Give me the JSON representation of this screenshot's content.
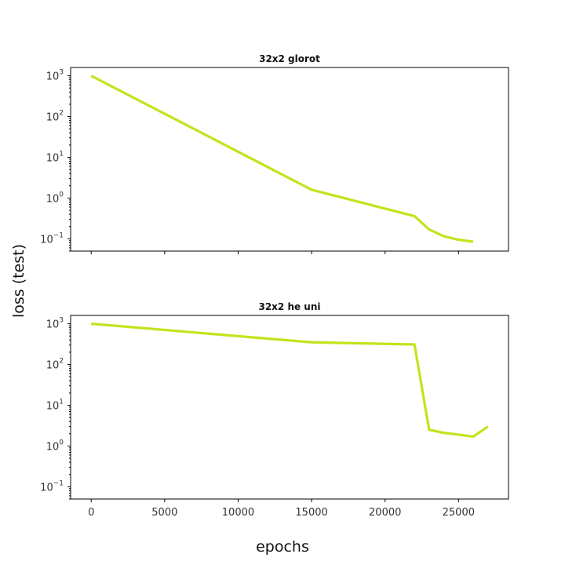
{
  "figure": {
    "xlabel": "epochs",
    "ylabel": "loss (test)",
    "line_color": "#c3e31c"
  },
  "chart_data": [
    {
      "type": "line",
      "title": "32x2 glorot",
      "xlabel": "",
      "ylabel": "",
      "yscale": "log",
      "xlim": [
        -1400,
        28400
      ],
      "ylim": [
        0.05,
        1600
      ],
      "x_ticks": [
        0,
        5000,
        10000,
        15000,
        20000,
        25000
      ],
      "x_tick_labels_shown": false,
      "y_ticks": [
        {
          "value": 0.1,
          "base": "10",
          "exp": "−1"
        },
        {
          "value": 1,
          "base": "10",
          "exp": "0"
        },
        {
          "value": 10,
          "base": "10",
          "exp": "1"
        },
        {
          "value": 100,
          "base": "10",
          "exp": "2"
        },
        {
          "value": 1000,
          "base": "10",
          "exp": "3"
        }
      ],
      "grid": false,
      "series": [
        {
          "x": [
            0,
            15000,
            22000,
            23000,
            24000,
            25000,
            26000
          ],
          "y": [
            1000,
            1.6,
            0.36,
            0.17,
            0.115,
            0.095,
            0.085
          ]
        }
      ]
    },
    {
      "type": "line",
      "title": "32x2 he uni",
      "xlabel": "",
      "ylabel": "",
      "yscale": "log",
      "xlim": [
        -1400,
        28400
      ],
      "ylim": [
        0.05,
        1600
      ],
      "x_ticks": [
        0,
        5000,
        10000,
        15000,
        20000,
        25000
      ],
      "x_tick_labels_shown": true,
      "x_tick_labels": [
        "0",
        "5000",
        "10000",
        "15000",
        "20000",
        "25000"
      ],
      "y_ticks": [
        {
          "value": 0.1,
          "base": "10",
          "exp": "−1"
        },
        {
          "value": 1,
          "base": "10",
          "exp": "0"
        },
        {
          "value": 10,
          "base": "10",
          "exp": "1"
        },
        {
          "value": 100,
          "base": "10",
          "exp": "2"
        },
        {
          "value": 1000,
          "base": "10",
          "exp": "3"
        }
      ],
      "grid": false,
      "series": [
        {
          "x": [
            0,
            15000,
            22000,
            23000,
            24000,
            25000,
            26000,
            27000
          ],
          "y": [
            1000,
            350,
            310,
            2.5,
            2.1,
            1.9,
            1.7,
            3.0
          ]
        }
      ]
    }
  ]
}
